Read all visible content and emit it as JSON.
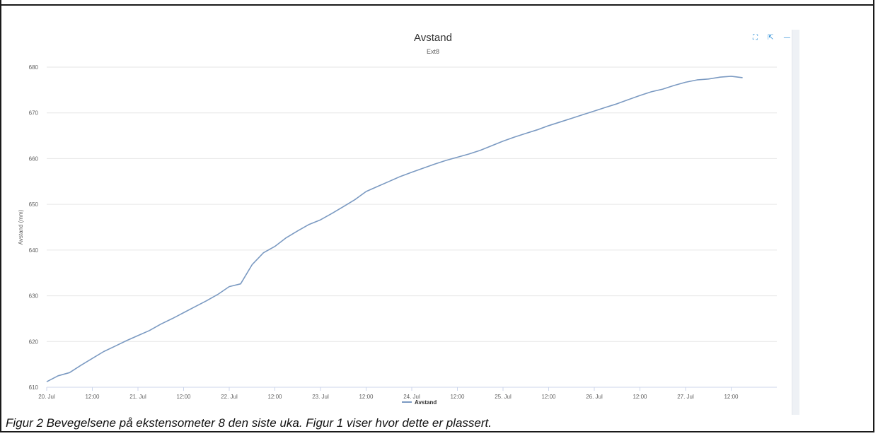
{
  "caption": "Figur 2 Bevegelsene på ekstensometer 8 den siste uka. Figur 1 viser hvor dette er plassert.",
  "tools": [
    {
      "name": "fullscreen-icon",
      "glyph": "⛶"
    },
    {
      "name": "export-icon",
      "glyph": "⇱"
    },
    {
      "name": "minimize-icon",
      "glyph": "—"
    }
  ],
  "colors": {
    "series": "#7b9ac2",
    "grid": "#e6e6e6",
    "text": "#606060",
    "title": "#333333"
  },
  "chart_data": {
    "type": "line",
    "title": "Avstand",
    "subtitle": "Ext8",
    "xlabel": "",
    "ylabel": "Avstand (mm)",
    "ylim": [
      610,
      680
    ],
    "yticks": [
      610,
      620,
      630,
      640,
      650,
      660,
      670,
      680
    ],
    "xlim": [
      "2020-07-20 00:00",
      "2020-07-28 00:00"
    ],
    "xticks": [
      {
        "x": "2020-07-20 00:00",
        "label": "20. Jul"
      },
      {
        "x": "2020-07-20 12:00",
        "label": "12:00"
      },
      {
        "x": "2020-07-21 00:00",
        "label": "21. Jul"
      },
      {
        "x": "2020-07-21 12:00",
        "label": "12:00"
      },
      {
        "x": "2020-07-22 00:00",
        "label": "22. Jul"
      },
      {
        "x": "2020-07-22 12:00",
        "label": "12:00"
      },
      {
        "x": "2020-07-23 00:00",
        "label": "23. Jul"
      },
      {
        "x": "2020-07-23 12:00",
        "label": "12:00"
      },
      {
        "x": "2020-07-24 00:00",
        "label": "24. Jul"
      },
      {
        "x": "2020-07-24 12:00",
        "label": "12:00"
      },
      {
        "x": "2020-07-25 00:00",
        "label": "25. Jul"
      },
      {
        "x": "2020-07-25 12:00",
        "label": "12:00"
      },
      {
        "x": "2020-07-26 00:00",
        "label": "26. Jul"
      },
      {
        "x": "2020-07-26 12:00",
        "label": "12:00"
      },
      {
        "x": "2020-07-27 00:00",
        "label": "27. Jul"
      },
      {
        "x": "2020-07-27 12:00",
        "label": "12:00"
      }
    ],
    "grid": true,
    "legend": "bottom-center",
    "series": [
      {
        "name": "Avstand",
        "x": [
          "2020-07-20 00:00",
          "2020-07-20 03:00",
          "2020-07-20 06:00",
          "2020-07-20 09:00",
          "2020-07-20 12:00",
          "2020-07-20 15:00",
          "2020-07-20 18:00",
          "2020-07-20 21:00",
          "2020-07-21 00:00",
          "2020-07-21 03:00",
          "2020-07-21 06:00",
          "2020-07-21 09:00",
          "2020-07-21 12:00",
          "2020-07-21 15:00",
          "2020-07-21 18:00",
          "2020-07-21 21:00",
          "2020-07-22 00:00",
          "2020-07-22 03:00",
          "2020-07-22 06:00",
          "2020-07-22 09:00",
          "2020-07-22 12:00",
          "2020-07-22 15:00",
          "2020-07-22 18:00",
          "2020-07-22 21:00",
          "2020-07-23 00:00",
          "2020-07-23 03:00",
          "2020-07-23 06:00",
          "2020-07-23 09:00",
          "2020-07-23 12:00",
          "2020-07-23 15:00",
          "2020-07-23 18:00",
          "2020-07-23 21:00",
          "2020-07-24 00:00",
          "2020-07-24 03:00",
          "2020-07-24 06:00",
          "2020-07-24 09:00",
          "2020-07-24 12:00",
          "2020-07-24 15:00",
          "2020-07-24 18:00",
          "2020-07-24 21:00",
          "2020-07-25 00:00",
          "2020-07-25 03:00",
          "2020-07-25 06:00",
          "2020-07-25 09:00",
          "2020-07-25 12:00",
          "2020-07-25 15:00",
          "2020-07-25 18:00",
          "2020-07-25 21:00",
          "2020-07-26 00:00",
          "2020-07-26 03:00",
          "2020-07-26 06:00",
          "2020-07-26 09:00",
          "2020-07-26 12:00",
          "2020-07-26 15:00",
          "2020-07-26 18:00",
          "2020-07-26 21:00",
          "2020-07-27 00:00",
          "2020-07-27 03:00",
          "2020-07-27 06:00",
          "2020-07-27 09:00",
          "2020-07-27 12:00",
          "2020-07-27 15:00"
        ],
        "y": [
          611.2,
          612.5,
          613.2,
          614.8,
          616.3,
          617.8,
          619.0,
          620.2,
          621.3,
          622.4,
          623.8,
          625.0,
          626.3,
          627.6,
          628.9,
          630.3,
          632.0,
          632.6,
          636.8,
          639.4,
          640.8,
          642.7,
          644.2,
          645.6,
          646.6,
          648.0,
          649.5,
          651.0,
          652.8,
          653.9,
          655.0,
          656.1,
          657.0,
          657.9,
          658.8,
          659.6,
          660.3,
          661.0,
          661.8,
          662.8,
          663.8,
          664.7,
          665.5,
          666.3,
          667.2,
          668.0,
          668.8,
          669.6,
          670.4,
          671.2,
          672.0,
          672.9,
          673.8,
          674.6,
          675.2,
          676.0,
          676.7,
          677.2,
          677.4,
          677.8,
          678.0,
          677.7
        ]
      }
    ]
  }
}
